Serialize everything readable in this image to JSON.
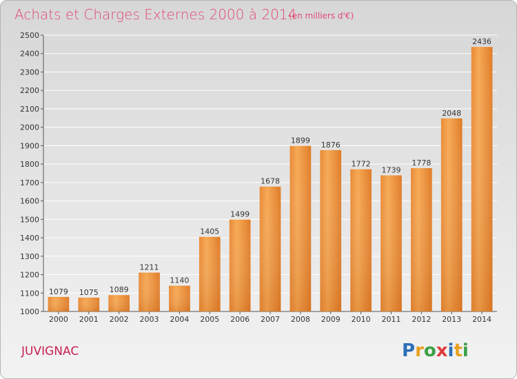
{
  "chart_data": {
    "type": "bar",
    "title": "Achats et Charges Externes 2000 à 2014",
    "unit": "(en milliers d'€)",
    "categories": [
      "2000",
      "2001",
      "2002",
      "2003",
      "2004",
      "2005",
      "2006",
      "2007",
      "2008",
      "2009",
      "2010",
      "2011",
      "2012",
      "2013",
      "2014"
    ],
    "values": [
      1079,
      1075,
      1089,
      1211,
      1140,
      1405,
      1499,
      1678,
      1899,
      1876,
      1772,
      1739,
      1778,
      2048,
      2436
    ],
    "ylim": [
      1000,
      2500
    ],
    "yticks": [
      1000,
      1100,
      1200,
      1300,
      1400,
      1500,
      1600,
      1700,
      1800,
      1900,
      2000,
      2100,
      2200,
      2300,
      2400,
      2500
    ],
    "grid": true,
    "bar_color": "#f0a050",
    "bar_color_dark": "#d97a25"
  },
  "commune": "JUVIGNAC",
  "logo": {
    "letters": [
      "P",
      "r",
      "o",
      "x",
      "i",
      "t",
      "i"
    ],
    "colors": [
      "#2d6fb8",
      "#e8a020",
      "#3aa046",
      "#e03a3a",
      "#2d6fb8",
      "#e8a020",
      "#3aa046"
    ]
  }
}
